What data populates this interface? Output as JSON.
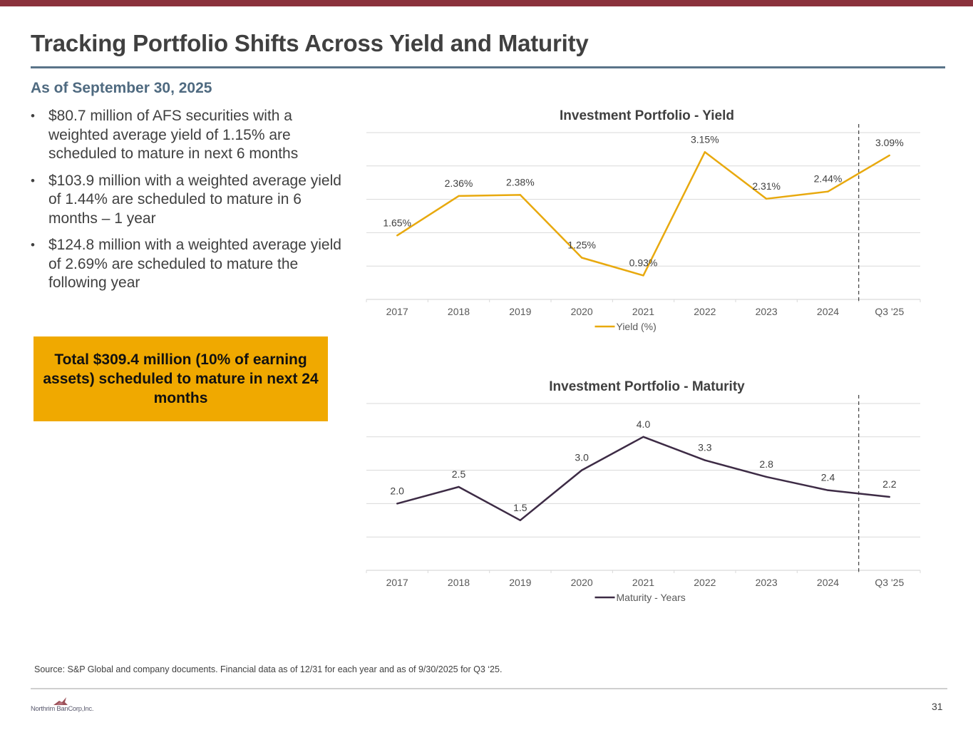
{
  "header": {
    "title": "Tracking Portfolio Shifts Across Yield and Maturity",
    "subtitle": "As of September 30, 2025"
  },
  "bullets": [
    "$80.7 million of AFS securities with a weighted average yield of 1.15% are scheduled to mature in next 6 months",
    "$103.9 million with a weighted average yield of 1.44% are scheduled to mature in 6 months – 1 year",
    "$124.8 million with a weighted average yield of 2.69% are scheduled to mature the following year"
  ],
  "bullet_symbol": "•",
  "callout": {
    "text": "Total $309.4 million (10% of earning assets) scheduled to mature in next 24 months",
    "color": "#f0a900"
  },
  "chart_data": [
    {
      "id": "yield",
      "type": "line",
      "title": "Investment Portfolio - Yield",
      "categories": [
        "2017",
        "2018",
        "2019",
        "2020",
        "2021",
        "2022",
        "2023",
        "2024",
        "Q3 '25"
      ],
      "series": [
        {
          "name": "Yield (%)",
          "values": [
            1.65,
            2.36,
            2.38,
            1.25,
            0.93,
            3.15,
            2.31,
            2.44,
            3.09
          ],
          "labels": [
            "1.65%",
            "2.36%",
            "2.38%",
            "1.25%",
            "0.93%",
            "3.15%",
            "2.31%",
            "2.44%",
            "3.09%"
          ],
          "color": "#e8a90e"
        }
      ],
      "xlabel": "",
      "ylabel": "",
      "ylim": [
        0.5,
        3.5
      ],
      "ystep": 0.6,
      "y_axis_labels_shown": false,
      "grid": true,
      "legend": "bottom-center",
      "divider_after_category": "2024"
    },
    {
      "id": "maturity",
      "type": "line",
      "title": "Investment Portfolio - Maturity",
      "categories": [
        "2017",
        "2018",
        "2019",
        "2020",
        "2021",
        "2022",
        "2023",
        "2024",
        "Q3 '25"
      ],
      "series": [
        {
          "name": "Maturity - Years",
          "values": [
            2.0,
            2.5,
            1.5,
            3.0,
            4.0,
            3.3,
            2.8,
            2.4,
            2.2
          ],
          "labels": [
            "2.0",
            "2.5",
            "1.5",
            "3.0",
            "4.0",
            "3.3",
            "2.8",
            "2.4",
            "2.2"
          ],
          "color": "#3d2b45"
        }
      ],
      "xlabel": "",
      "ylabel": "",
      "ylim": [
        0,
        5
      ],
      "ystep": 1,
      "y_axis_labels_shown": false,
      "grid": true,
      "legend": "bottom-center",
      "divider_after_category": "2024"
    }
  ],
  "footer": {
    "source": "Source: S&P Global and company documents. Financial data as of 12/31 for each year and as of 9/30/2025 for Q3 ‘25.",
    "company": "Northrim BanCorp,Inc.",
    "page_number": "31"
  }
}
